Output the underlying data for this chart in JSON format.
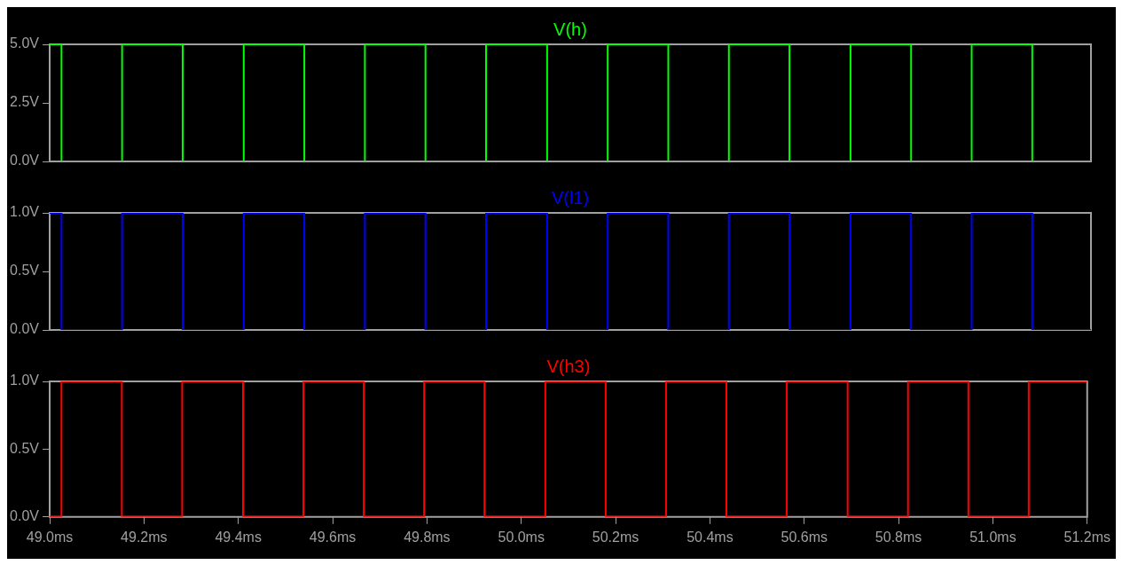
{
  "chart_data": [
    {
      "type": "step",
      "x": [
        49.0,
        49.025,
        49.153,
        49.281,
        49.41,
        49.538,
        49.666,
        49.794,
        49.922,
        50.051,
        50.179,
        50.307,
        50.435,
        50.563,
        50.692,
        50.82,
        50.948,
        51.076,
        51.2
      ],
      "xlim": [
        49.0,
        51.2
      ],
      "ylim": [
        0,
        5
      ],
      "yticks": [
        {
          "value": 0,
          "label": "0.0V"
        },
        {
          "value": 2.5,
          "label": "2.5V"
        },
        {
          "value": 5,
          "label": "5.0V"
        }
      ],
      "tick_labels": "y",
      "grid": false,
      "marker": "none",
      "line_style": "solid",
      "series": [
        {
          "name": "V(h)",
          "color": "#00ff00",
          "values": [
            5,
            0,
            5,
            0,
            5,
            0,
            5,
            0,
            5,
            0,
            5,
            0,
            5,
            0,
            5,
            0,
            5,
            0,
            0
          ]
        }
      ]
    },
    {
      "type": "step",
      "x": [
        49.0,
        49.025,
        49.153,
        49.281,
        49.41,
        49.538,
        49.666,
        49.794,
        49.922,
        50.051,
        50.179,
        50.307,
        50.435,
        50.563,
        50.692,
        50.82,
        50.948,
        51.076,
        51.2
      ],
      "xlim": [
        49.0,
        51.2
      ],
      "ylim": [
        0,
        1
      ],
      "yticks": [
        {
          "value": 0,
          "label": "0.0V"
        },
        {
          "value": 0.5,
          "label": "0.5V"
        },
        {
          "value": 1,
          "label": "1.0V"
        }
      ],
      "tick_labels": "y",
      "grid": false,
      "marker": "none",
      "line_style": "solid",
      "series": [
        {
          "name": "V(l1)",
          "color": "#0000ff",
          "values": [
            1,
            0,
            1,
            0,
            1,
            0,
            1,
            0,
            1,
            0,
            1,
            0,
            1,
            0,
            1,
            0,
            1,
            0,
            0
          ]
        }
      ]
    },
    {
      "type": "step",
      "x": [
        49.0,
        49.025,
        49.153,
        49.281,
        49.41,
        49.538,
        49.666,
        49.794,
        49.922,
        50.051,
        50.179,
        50.307,
        50.435,
        50.563,
        50.692,
        50.82,
        50.948,
        51.076,
        51.2
      ],
      "xlim": [
        49.0,
        51.2
      ],
      "xticks": [
        {
          "value": 49.0,
          "label": "49.0ms"
        },
        {
          "value": 49.2,
          "label": "49.2ms"
        },
        {
          "value": 49.4,
          "label": "49.4ms"
        },
        {
          "value": 49.6,
          "label": "49.6ms"
        },
        {
          "value": 49.8,
          "label": "49.8ms"
        },
        {
          "value": 50.0,
          "label": "50.0ms"
        },
        {
          "value": 50.2,
          "label": "50.2ms"
        },
        {
          "value": 50.4,
          "label": "50.4ms"
        },
        {
          "value": 50.6,
          "label": "50.6ms"
        },
        {
          "value": 50.8,
          "label": "50.8ms"
        },
        {
          "value": 51.0,
          "label": "51.0ms"
        },
        {
          "value": 51.2,
          "label": "51.2ms"
        }
      ],
      "ylim": [
        0,
        1
      ],
      "yticks": [
        {
          "value": 0,
          "label": "0.0V"
        },
        {
          "value": 0.5,
          "label": "0.5V"
        },
        {
          "value": 1,
          "label": "1.0V"
        }
      ],
      "grid": false,
      "marker": "none",
      "line_style": "solid",
      "series": [
        {
          "name": "V(h3)",
          "color": "#ff0000",
          "values": [
            0,
            1,
            0,
            1,
            0,
            1,
            0,
            1,
            0,
            1,
            0,
            1,
            0,
            1,
            0,
            1,
            0,
            1,
            1
          ]
        }
      ]
    }
  ]
}
